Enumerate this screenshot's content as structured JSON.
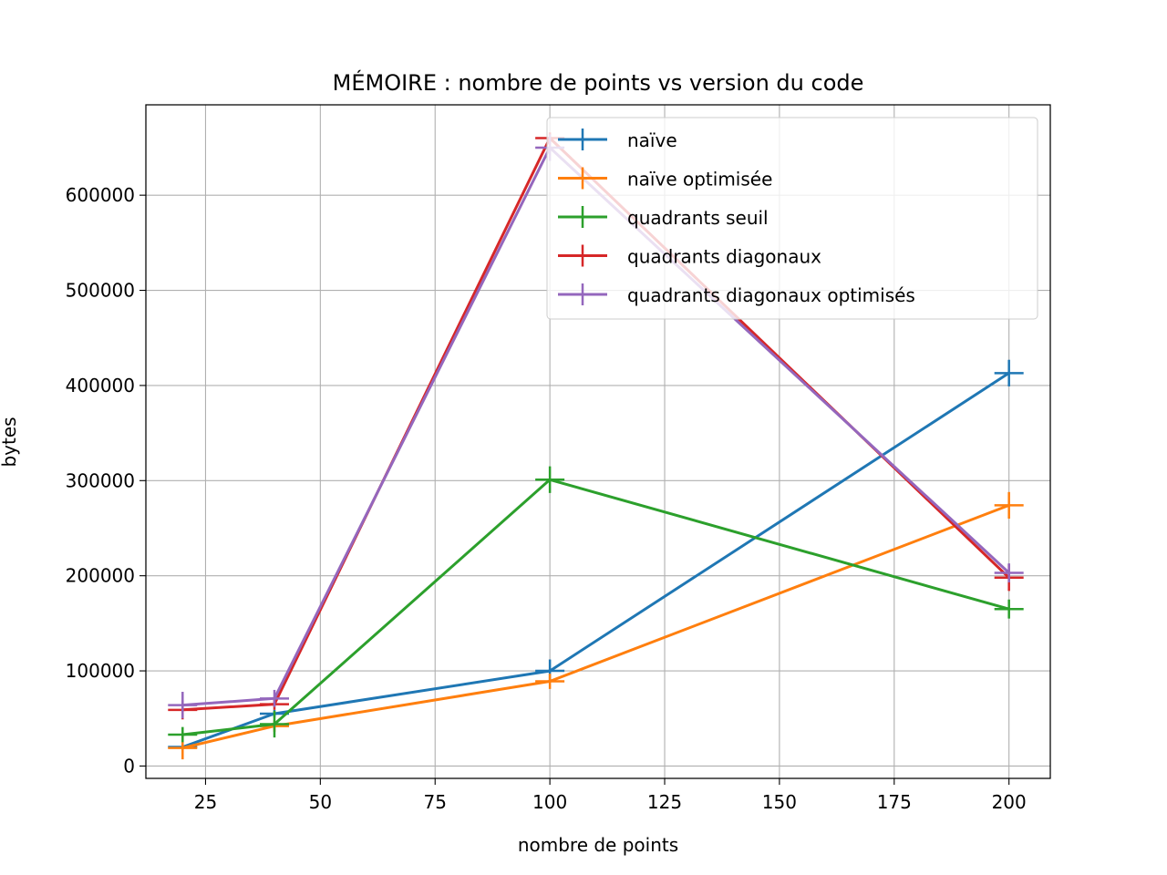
{
  "chart_data": {
    "type": "line",
    "title": "MÉMOIRE : nombre de points vs version du code",
    "xlabel": "nombre de points",
    "ylabel": "bytes",
    "x": [
      20,
      40,
      100,
      200
    ],
    "xlim": [
      12,
      209
    ],
    "ylim": [
      -13000,
      695000
    ],
    "xticks": [
      25,
      50,
      75,
      100,
      125,
      150,
      175,
      200
    ],
    "yticks": [
      0,
      100000,
      200000,
      300000,
      400000,
      500000,
      600000
    ],
    "grid": true,
    "legend_position": "top-right",
    "marker": "plus with error bars",
    "series": [
      {
        "name": "naïve",
        "color": "#1f77b4",
        "values": [
          20000,
          55000,
          100000,
          413000
        ],
        "errors": [
          3000,
          4000,
          12000,
          14000
        ]
      },
      {
        "name": "naïve optimisée",
        "color": "#ff7f0e",
        "values": [
          19000,
          42000,
          89000,
          274000
        ],
        "errors": [
          12000,
          6000,
          8000,
          14000
        ]
      },
      {
        "name": "quadrants seuil",
        "color": "#2ca02c",
        "values": [
          33000,
          44000,
          301000,
          165000
        ],
        "errors": [
          8000,
          14000,
          14000,
          10000
        ]
      },
      {
        "name": "quadrants diagonaux",
        "color": "#d62728",
        "values": [
          59000,
          65000,
          660000,
          198000
        ],
        "errors": [
          10000,
          6000,
          6000,
          14000
        ]
      },
      {
        "name": "quadrants diagonaux optimisés",
        "color": "#9467bd",
        "values": [
          64000,
          71000,
          650000,
          203000
        ],
        "errors": [
          14000,
          9000,
          14000,
          10000
        ]
      }
    ]
  }
}
